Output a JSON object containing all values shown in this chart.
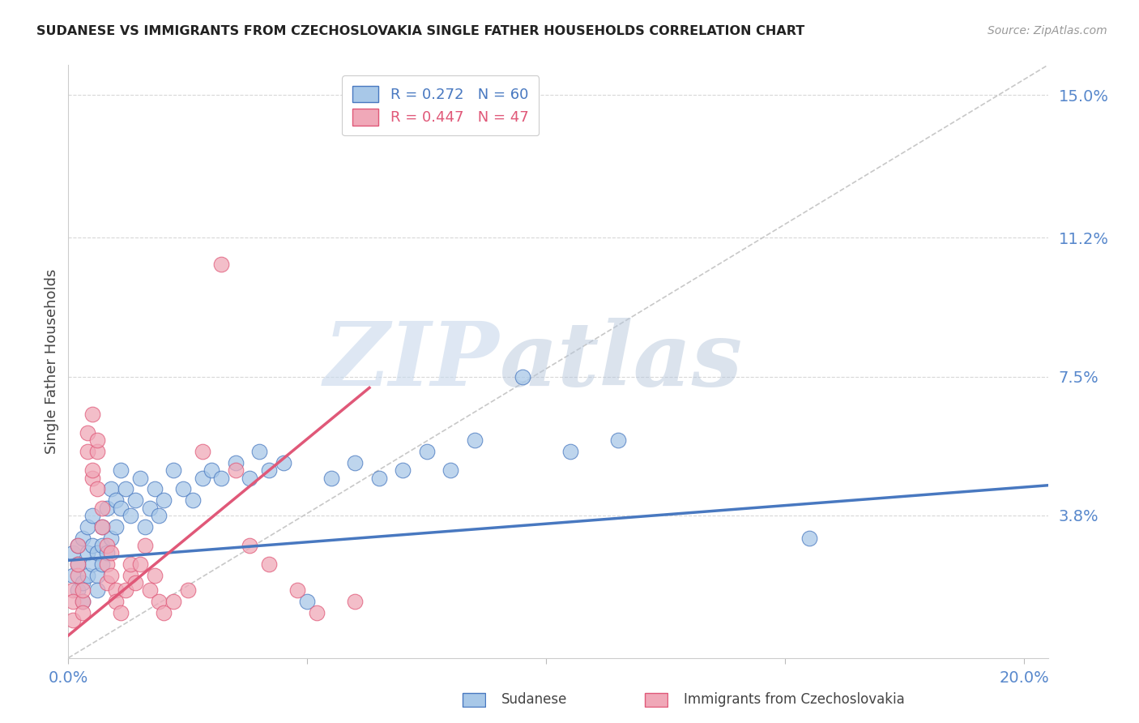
{
  "title": "SUDANESE VS IMMIGRANTS FROM CZECHOSLOVAKIA SINGLE FATHER HOUSEHOLDS CORRELATION CHART",
  "source": "Source: ZipAtlas.com",
  "ylabel": "Single Father Households",
  "xlim": [
    0.0,
    0.205
  ],
  "ylim": [
    0.0,
    0.158
  ],
  "yticks": [
    0.038,
    0.075,
    0.112,
    0.15
  ],
  "ytick_labels": [
    "3.8%",
    "7.5%",
    "11.2%",
    "15.0%"
  ],
  "xticks": [
    0.0,
    0.05,
    0.1,
    0.15,
    0.2
  ],
  "xtick_labels": [
    "0.0%",
    "",
    "",
    "",
    "20.0%"
  ],
  "watermark_zip": "ZIP",
  "watermark_atlas": "atlas",
  "legend_r1": "R = 0.272   N = 60",
  "legend_r2": "R = 0.447   N = 47",
  "color_sudanese": "#a8c8e8",
  "color_czech": "#f0a8b8",
  "line_color_sudanese": "#4878c0",
  "line_color_czech": "#e05878",
  "diagonal_color": "#c8c8c8",
  "background_color": "#ffffff",
  "grid_color": "#d8d8d8",
  "axis_label_color": "#5888cc",
  "sudanese_points": [
    [
      0.001,
      0.028
    ],
    [
      0.001,
      0.022
    ],
    [
      0.002,
      0.03
    ],
    [
      0.002,
      0.025
    ],
    [
      0.002,
      0.018
    ],
    [
      0.003,
      0.032
    ],
    [
      0.003,
      0.02
    ],
    [
      0.003,
      0.015
    ],
    [
      0.004,
      0.028
    ],
    [
      0.004,
      0.022
    ],
    [
      0.004,
      0.035
    ],
    [
      0.005,
      0.03
    ],
    [
      0.005,
      0.025
    ],
    [
      0.005,
      0.038
    ],
    [
      0.006,
      0.028
    ],
    [
      0.006,
      0.022
    ],
    [
      0.006,
      0.018
    ],
    [
      0.007,
      0.035
    ],
    [
      0.007,
      0.03
    ],
    [
      0.007,
      0.025
    ],
    [
      0.008,
      0.04
    ],
    [
      0.008,
      0.028
    ],
    [
      0.009,
      0.045
    ],
    [
      0.009,
      0.032
    ],
    [
      0.01,
      0.042
    ],
    [
      0.01,
      0.035
    ],
    [
      0.011,
      0.05
    ],
    [
      0.011,
      0.04
    ],
    [
      0.012,
      0.045
    ],
    [
      0.013,
      0.038
    ],
    [
      0.014,
      0.042
    ],
    [
      0.015,
      0.048
    ],
    [
      0.016,
      0.035
    ],
    [
      0.017,
      0.04
    ],
    [
      0.018,
      0.045
    ],
    [
      0.019,
      0.038
    ],
    [
      0.02,
      0.042
    ],
    [
      0.022,
      0.05
    ],
    [
      0.024,
      0.045
    ],
    [
      0.026,
      0.042
    ],
    [
      0.028,
      0.048
    ],
    [
      0.03,
      0.05
    ],
    [
      0.032,
      0.048
    ],
    [
      0.035,
      0.052
    ],
    [
      0.038,
      0.048
    ],
    [
      0.04,
      0.055
    ],
    [
      0.042,
      0.05
    ],
    [
      0.045,
      0.052
    ],
    [
      0.05,
      0.015
    ],
    [
      0.055,
      0.048
    ],
    [
      0.06,
      0.052
    ],
    [
      0.065,
      0.048
    ],
    [
      0.07,
      0.05
    ],
    [
      0.075,
      0.055
    ],
    [
      0.08,
      0.05
    ],
    [
      0.085,
      0.058
    ],
    [
      0.095,
      0.075
    ],
    [
      0.105,
      0.055
    ],
    [
      0.115,
      0.058
    ],
    [
      0.155,
      0.032
    ]
  ],
  "czech_points": [
    [
      0.001,
      0.018
    ],
    [
      0.001,
      0.015
    ],
    [
      0.001,
      0.01
    ],
    [
      0.002,
      0.022
    ],
    [
      0.002,
      0.025
    ],
    [
      0.002,
      0.03
    ],
    [
      0.003,
      0.015
    ],
    [
      0.003,
      0.012
    ],
    [
      0.003,
      0.018
    ],
    [
      0.004,
      0.055
    ],
    [
      0.004,
      0.06
    ],
    [
      0.005,
      0.048
    ],
    [
      0.005,
      0.065
    ],
    [
      0.005,
      0.05
    ],
    [
      0.006,
      0.055
    ],
    [
      0.006,
      0.058
    ],
    [
      0.006,
      0.045
    ],
    [
      0.007,
      0.04
    ],
    [
      0.007,
      0.035
    ],
    [
      0.008,
      0.03
    ],
    [
      0.008,
      0.025
    ],
    [
      0.008,
      0.02
    ],
    [
      0.009,
      0.028
    ],
    [
      0.009,
      0.022
    ],
    [
      0.01,
      0.018
    ],
    [
      0.01,
      0.015
    ],
    [
      0.011,
      0.012
    ],
    [
      0.012,
      0.018
    ],
    [
      0.013,
      0.022
    ],
    [
      0.013,
      0.025
    ],
    [
      0.014,
      0.02
    ],
    [
      0.015,
      0.025
    ],
    [
      0.016,
      0.03
    ],
    [
      0.017,
      0.018
    ],
    [
      0.018,
      0.022
    ],
    [
      0.019,
      0.015
    ],
    [
      0.02,
      0.012
    ],
    [
      0.022,
      0.015
    ],
    [
      0.025,
      0.018
    ],
    [
      0.028,
      0.055
    ],
    [
      0.032,
      0.105
    ],
    [
      0.035,
      0.05
    ],
    [
      0.038,
      0.03
    ],
    [
      0.042,
      0.025
    ],
    [
      0.048,
      0.018
    ],
    [
      0.052,
      0.012
    ],
    [
      0.06,
      0.015
    ]
  ],
  "sudanese_line_x": [
    0.0,
    0.205
  ],
  "sudanese_line_y": [
    0.026,
    0.046
  ],
  "czech_line_x": [
    0.0,
    0.063
  ],
  "czech_line_y": [
    0.006,
    0.072
  ],
  "diagonal_line_x": [
    0.0,
    0.205
  ],
  "diagonal_line_y": [
    0.0,
    0.158
  ]
}
